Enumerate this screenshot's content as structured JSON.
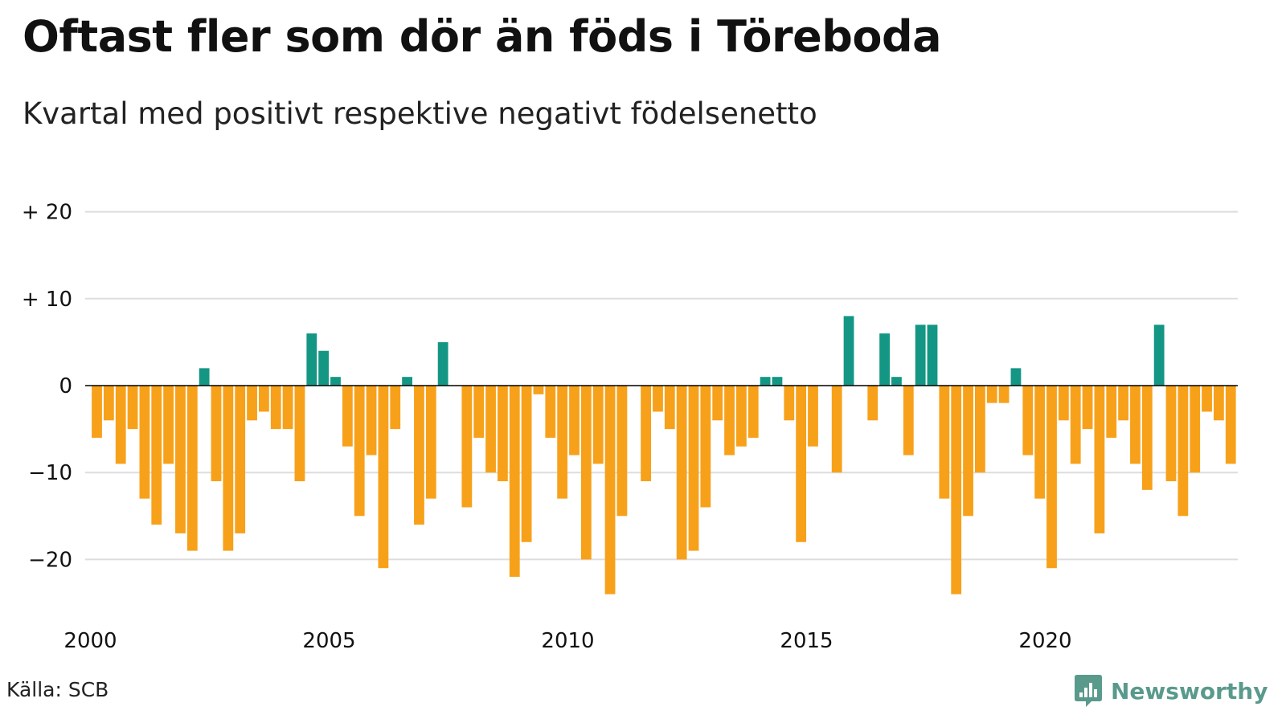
{
  "title": "Oftast fler som dör än föds i Töreboda",
  "subtitle": "Kvartal med positivt respektive negativt födelsenetto",
  "source": "Källa: SCB",
  "brand": "Newsworthy",
  "colors": {
    "positive": "#149684",
    "negative": "#f7a11a",
    "grid": "#dddddd",
    "zero": "#000000"
  },
  "chart_data": {
    "type": "bar",
    "title": "Oftast fler som dör än föds i Töreboda",
    "subtitle": "Kvartal med positivt respektive negativt födelsenetto",
    "xlabel": "",
    "ylabel": "",
    "ylim": [
      -26,
      20
    ],
    "y_ticks": [
      {
        "value": 20,
        "label": "+ 20"
      },
      {
        "value": 10,
        "label": "+ 10"
      },
      {
        "value": 0,
        "label": "0"
      },
      {
        "value": -10,
        "label": "−10"
      },
      {
        "value": -20,
        "label": "−20"
      }
    ],
    "x_ticks": [
      "2000",
      "2005",
      "2010",
      "2015",
      "2020"
    ],
    "start_year": 2000,
    "grid": true,
    "legend": "none",
    "series": [
      {
        "values": [
          -6,
          -4,
          -9,
          -5,
          -13,
          -16,
          -9,
          -17,
          -19,
          2,
          -11,
          -19,
          -17,
          -4,
          -3,
          -5,
          -5,
          -11,
          6,
          4,
          1,
          -7,
          -15,
          -8,
          -21,
          -5,
          1,
          -16,
          -13,
          5,
          0,
          -14,
          -6,
          -10,
          -11,
          -22,
          -18,
          -1,
          -6,
          -13,
          -8,
          -20,
          -9,
          -24,
          -15,
          0,
          -11,
          -3,
          -5,
          -20,
          -19,
          -14,
          -4,
          -8,
          -7,
          -6,
          1,
          1,
          -4,
          -18,
          -7,
          0,
          -10,
          8,
          0,
          -4,
          6,
          1,
          -8,
          7,
          7,
          -13,
          -24,
          -15,
          -10,
          -2,
          -2,
          2,
          -8,
          -13,
          -21,
          -4,
          -9,
          -5,
          -17,
          -6,
          -4,
          -9,
          -12,
          7,
          -11,
          -15,
          -10,
          -3,
          -4,
          -9
        ]
      }
    ]
  }
}
